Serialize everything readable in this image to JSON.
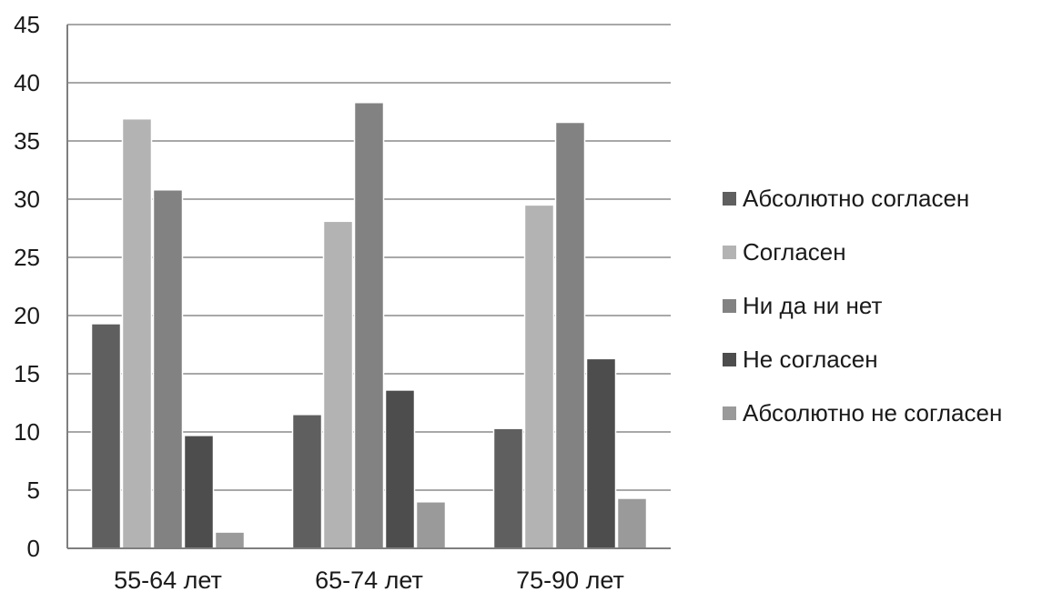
{
  "chart_data": {
    "type": "bar",
    "title": "",
    "xlabel": "",
    "ylabel": "",
    "ylim": [
      0,
      45
    ],
    "yticks": [
      0,
      5,
      10,
      15,
      20,
      25,
      30,
      35,
      40,
      45
    ],
    "grid": true,
    "legend_position": "right",
    "categories": [
      "55-64 лет",
      "65-74 лет",
      "75-90 лет"
    ],
    "series": [
      {
        "name": "Абсолютно согласен",
        "color": "#5f5f5f",
        "values": [
          19.3,
          11.5,
          10.3
        ]
      },
      {
        "name": "Согласен",
        "color": "#b3b3b3",
        "values": [
          36.9,
          28.1,
          29.5
        ]
      },
      {
        "name": "Ни да ни нет",
        "color": "#828282",
        "values": [
          30.8,
          38.3,
          36.6
        ]
      },
      {
        "name": "Не согласен",
        "color": "#4d4d4d",
        "values": [
          9.7,
          13.6,
          16.3
        ]
      },
      {
        "name": "Абсолютно не согласен",
        "color": "#9a9a9a",
        "values": [
          1.4,
          4.0,
          4.3
        ]
      }
    ],
    "axis_color": "#7f7f7f",
    "grid_color": "#8c8c8c"
  }
}
